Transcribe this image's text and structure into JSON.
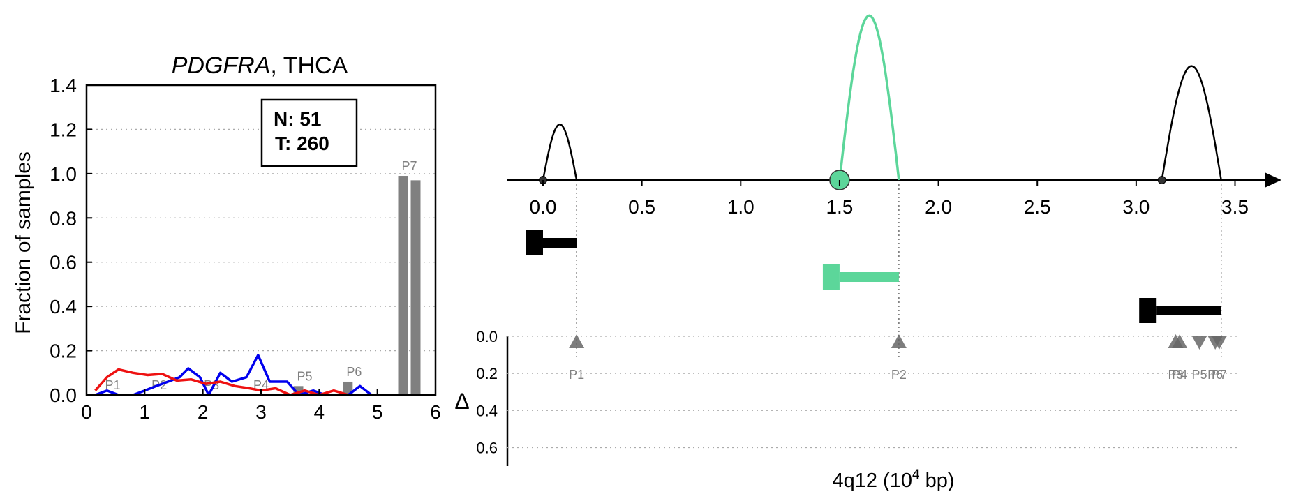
{
  "colors": {
    "tumor": "#0000ee",
    "normal": "#ee1111",
    "bar": "#808080",
    "highlight": "#5cd69a",
    "axis": "#000000",
    "marker": "#666666"
  },
  "left_chart": {
    "title_gene": "PDGFRA",
    "title_rest": ", THCA",
    "ylabel": "Fraction of samples",
    "legend": {
      "n_label": "N: 51",
      "t_label": "T: 260"
    },
    "chart_data": {
      "type": "line",
      "xlim": [
        0,
        6
      ],
      "ylim": [
        0,
        1.4
      ],
      "x_ticks": [
        "0",
        "1",
        "2",
        "3",
        "4",
        "5",
        "6"
      ],
      "y_ticks": [
        "0.0",
        "0.2",
        "0.4",
        "0.6",
        "0.8",
        "1.0",
        "1.2",
        "1.4"
      ],
      "grid": "y-dotted",
      "series": [
        {
          "color": "#0000ee",
          "x": [
            0.15,
            0.35,
            0.55,
            0.8,
            1.0,
            1.2,
            1.4,
            1.6,
            1.75,
            1.95,
            2.1,
            2.3,
            2.5,
            2.75,
            2.95,
            3.15,
            3.45,
            3.65,
            3.9,
            4.1,
            4.3,
            4.5,
            4.7,
            4.9
          ],
          "y": [
            0.0,
            0.02,
            0.0,
            0.0,
            0.02,
            0.04,
            0.06,
            0.08,
            0.12,
            0.08,
            0.0,
            0.1,
            0.06,
            0.08,
            0.18,
            0.06,
            0.06,
            0.0,
            0.02,
            0.0,
            0.0,
            0.0,
            0.04,
            0.0
          ]
        },
        {
          "color": "#ee1111",
          "x": [
            0.15,
            0.35,
            0.55,
            0.8,
            1.05,
            1.3,
            1.55,
            1.8,
            2.05,
            2.3,
            2.55,
            2.8,
            3.0,
            3.25,
            3.5,
            3.75,
            4.0,
            4.25,
            4.5,
            4.75,
            5.0,
            5.2
          ],
          "y": [
            0.02,
            0.08,
            0.115,
            0.1,
            0.09,
            0.095,
            0.065,
            0.07,
            0.05,
            0.06,
            0.04,
            0.03,
            0.02,
            0.03,
            0.0,
            0.02,
            0.0,
            0.02,
            0.0,
            0.0,
            0.0,
            0.0
          ]
        }
      ],
      "bars": [
        {
          "label": "P1",
          "x": 0.45,
          "values": [
            0.0,
            0.0
          ]
        },
        {
          "label": "P2",
          "x": 1.25,
          "values": [
            0.0,
            0.0
          ]
        },
        {
          "label": "P3",
          "x": 2.15,
          "values": [
            0.0,
            0.0
          ]
        },
        {
          "label": "P4",
          "x": 3.0,
          "values": [
            0.0,
            0.0
          ]
        },
        {
          "label": "P5",
          "x": 3.75,
          "values": [
            0.04,
            0.0
          ]
        },
        {
          "label": "P6",
          "x": 4.6,
          "values": [
            0.06,
            0.0
          ]
        },
        {
          "label": "P7",
          "x": 5.55,
          "values": [
            0.99,
            0.97
          ]
        }
      ]
    }
  },
  "right_chart": {
    "xlabel_pre": "4q12 (10",
    "xlabel_sup": "4",
    "xlabel_post": " bp)",
    "delta_label": "Δ",
    "x_ticks": [
      "0.0",
      "0.5",
      "1.0",
      "1.5",
      "2.0",
      "2.5",
      "3.0",
      "3.5"
    ],
    "delta_ticks": [
      "0.0",
      "0.2",
      "0.4",
      "0.6"
    ],
    "chart_data": {
      "type": "scatter",
      "xlim": [
        -0.18,
        3.65
      ],
      "delta_lim": [
        0,
        0.7
      ],
      "exons": [
        {
          "start": 0.0,
          "end": 0.17,
          "height": 0.21,
          "highlight": false
        },
        {
          "start": 1.5,
          "end": 1.8,
          "height": 0.62,
          "highlight": true
        },
        {
          "start": 3.13,
          "end": 3.43,
          "height": 0.43,
          "highlight": false
        }
      ],
      "transcripts": [
        {
          "head": 0.0,
          "end": 0.17,
          "highlight": false
        },
        {
          "head": 1.5,
          "end": 1.8,
          "highlight": true
        },
        {
          "head": 3.1,
          "end": 3.43,
          "highlight": false
        }
      ],
      "markers": [
        {
          "label": "P1",
          "x": 0.17,
          "delta": 0.03,
          "dir": "up"
        },
        {
          "label": "P2",
          "x": 1.8,
          "delta": 0.03,
          "dir": "up"
        },
        {
          "label": "P3",
          "x": 3.2,
          "delta": 0.03,
          "dir": "up"
        },
        {
          "label": "P4",
          "x": 3.22,
          "delta": 0.03,
          "dir": "up"
        },
        {
          "label": "P5",
          "x": 3.32,
          "delta": 0.03,
          "dir": "down"
        },
        {
          "label": "P6",
          "x": 3.4,
          "delta": 0.03,
          "dir": "down"
        },
        {
          "label": "P7",
          "x": 3.42,
          "delta": 0.03,
          "dir": "down"
        }
      ],
      "guides": [
        0.17,
        1.8,
        3.43
      ]
    }
  }
}
